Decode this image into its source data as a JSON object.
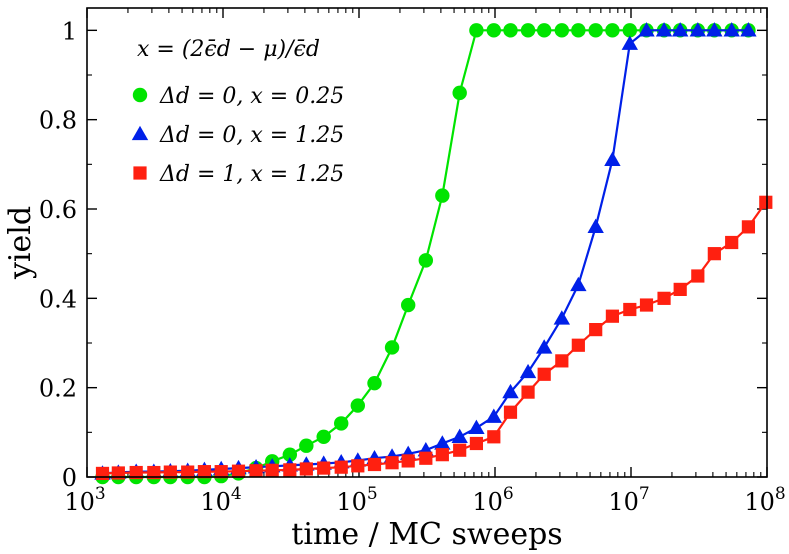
{
  "chart_data": {
    "type": "line",
    "title": "",
    "xlabel": "time / MC sweeps",
    "ylabel": "yield",
    "xscale": "log",
    "xlim": [
      1000,
      100000000
    ],
    "ylim": [
      0,
      1.05
    ],
    "x_ticks": [
      {
        "value": 1000,
        "base": "10",
        "exp": "3"
      },
      {
        "value": 10000,
        "base": "10",
        "exp": "4"
      },
      {
        "value": 100000,
        "base": "10",
        "exp": "5"
      },
      {
        "value": 1000000,
        "base": "10",
        "exp": "6"
      },
      {
        "value": 10000000,
        "base": "10",
        "exp": "7"
      },
      {
        "value": 100000000,
        "base": "10",
        "exp": "8"
      }
    ],
    "y_ticks": [
      {
        "value": 0,
        "label": "0"
      },
      {
        "value": 0.2,
        "label": "0.2"
      },
      {
        "value": 0.4,
        "label": "0.4"
      },
      {
        "value": 0.6,
        "label": "0.6"
      },
      {
        "value": 0.8,
        "label": "0.8"
      },
      {
        "value": 1,
        "label": "1"
      }
    ],
    "legend": {
      "title": "x = (2ϵ̄d − μ)/ϵ̄d",
      "placement": "top-left"
    },
    "series": [
      {
        "name": "Δd = 0, x = 0.25",
        "color": "#00e400",
        "marker": "circle",
        "points": [
          [
            1300,
            0.0
          ],
          [
            1700,
            0.0
          ],
          [
            2300,
            0.0
          ],
          [
            3100,
            0.0
          ],
          [
            4100,
            0.0
          ],
          [
            5500,
            0.0
          ],
          [
            7300,
            0.0
          ],
          [
            9700,
            0.002
          ],
          [
            13000,
            0.008
          ],
          [
            17500,
            0.02
          ],
          [
            23000,
            0.035
          ],
          [
            31000,
            0.05
          ],
          [
            41000,
            0.07
          ],
          [
            55000,
            0.09
          ],
          [
            74000,
            0.12
          ],
          [
            98000,
            0.16
          ],
          [
            130000,
            0.21
          ],
          [
            175000,
            0.29
          ],
          [
            230000,
            0.385
          ],
          [
            310000,
            0.485
          ],
          [
            410000,
            0.63
          ],
          [
            550000,
            0.86
          ],
          [
            730000,
            1.0
          ],
          [
            980000,
            1.0
          ],
          [
            1300000,
            1.0
          ],
          [
            1750000,
            1.0
          ],
          [
            2300000,
            1.0
          ],
          [
            3100000,
            1.0
          ],
          [
            4100000,
            1.0
          ],
          [
            5500000,
            1.0
          ],
          [
            7300000,
            1.0
          ],
          [
            9800000,
            1.0
          ],
          [
            13000000,
            1.0
          ],
          [
            17500000,
            1.0
          ],
          [
            23000000,
            1.0
          ],
          [
            31000000,
            1.0
          ],
          [
            41000000,
            1.0
          ],
          [
            55000000,
            1.0
          ],
          [
            73000000,
            1.0
          ]
        ]
      },
      {
        "name": "Δd = 0, x = 1.25",
        "color": "#0020e8",
        "marker": "triangle",
        "points": [
          [
            1300,
            0.008
          ],
          [
            1700,
            0.01
          ],
          [
            2300,
            0.012
          ],
          [
            3100,
            0.012
          ],
          [
            4100,
            0.013
          ],
          [
            5500,
            0.014
          ],
          [
            7300,
            0.016
          ],
          [
            9700,
            0.018
          ],
          [
            13000,
            0.02
          ],
          [
            17500,
            0.022
          ],
          [
            23000,
            0.024
          ],
          [
            31000,
            0.026
          ],
          [
            41000,
            0.028
          ],
          [
            55000,
            0.03
          ],
          [
            74000,
            0.033
          ],
          [
            98000,
            0.037
          ],
          [
            130000,
            0.042
          ],
          [
            175000,
            0.046
          ],
          [
            230000,
            0.052
          ],
          [
            310000,
            0.06
          ],
          [
            410000,
            0.075
          ],
          [
            550000,
            0.09
          ],
          [
            730000,
            0.11
          ],
          [
            980000,
            0.135
          ],
          [
            1300000,
            0.19
          ],
          [
            1750000,
            0.235
          ],
          [
            2300000,
            0.29
          ],
          [
            3100000,
            0.355
          ],
          [
            4100000,
            0.43
          ],
          [
            5500000,
            0.56
          ],
          [
            7300000,
            0.71
          ],
          [
            9800000,
            0.97
          ],
          [
            13000000,
            1.0
          ],
          [
            17500000,
            1.0
          ],
          [
            23000000,
            1.0
          ],
          [
            31000000,
            1.0
          ],
          [
            41000000,
            1.0
          ],
          [
            55000000,
            1.0
          ],
          [
            73000000,
            1.0
          ]
        ]
      },
      {
        "name": "Δd = 1, x = 1.25",
        "color": "#ff2010",
        "marker": "square",
        "points": [
          [
            1300,
            0.008
          ],
          [
            1700,
            0.009
          ],
          [
            2300,
            0.01
          ],
          [
            3100,
            0.01
          ],
          [
            4100,
            0.011
          ],
          [
            5500,
            0.011
          ],
          [
            7300,
            0.012
          ],
          [
            9700,
            0.012
          ],
          [
            13000,
            0.013
          ],
          [
            17500,
            0.014
          ],
          [
            23000,
            0.015
          ],
          [
            31000,
            0.016
          ],
          [
            41000,
            0.018
          ],
          [
            55000,
            0.02
          ],
          [
            74000,
            0.022
          ],
          [
            98000,
            0.025
          ],
          [
            130000,
            0.028
          ],
          [
            175000,
            0.032
          ],
          [
            230000,
            0.036
          ],
          [
            310000,
            0.042
          ],
          [
            410000,
            0.05
          ],
          [
            550000,
            0.06
          ],
          [
            730000,
            0.075
          ],
          [
            980000,
            0.09
          ],
          [
            1300000,
            0.145
          ],
          [
            1750000,
            0.19
          ],
          [
            2300000,
            0.23
          ],
          [
            3100000,
            0.26
          ],
          [
            4100000,
            0.295
          ],
          [
            5500000,
            0.33
          ],
          [
            7300000,
            0.36
          ],
          [
            9800000,
            0.375
          ],
          [
            13000000,
            0.385
          ],
          [
            17500000,
            0.4
          ],
          [
            23000000,
            0.42
          ],
          [
            31000000,
            0.45
          ],
          [
            41000000,
            0.5
          ],
          [
            55000000,
            0.525
          ],
          [
            73000000,
            0.56
          ],
          [
            98000000,
            0.615
          ]
        ]
      }
    ]
  }
}
